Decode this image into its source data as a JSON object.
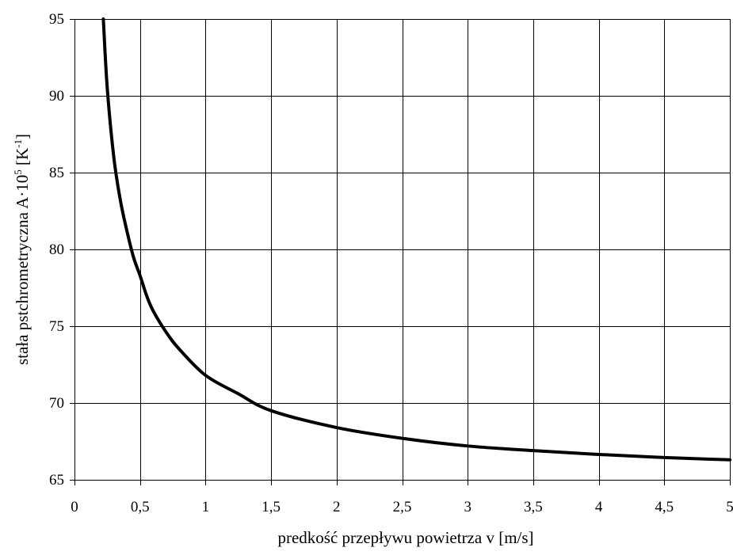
{
  "chart_data": {
    "type": "line",
    "title": "",
    "xlabel": "predkość przepływu powietrza v [m/s]",
    "ylabel": {
      "main": "stała pstchrometryczna  A·10",
      "exp": "5",
      "unit_open": " [K",
      "unit_exp": "-1",
      "unit_close": "]"
    },
    "xlim": [
      0,
      5
    ],
    "ylim": [
      65,
      95
    ],
    "x_ticks": [
      0,
      0.5,
      1,
      1.5,
      2,
      2.5,
      3,
      3.5,
      4,
      4.5,
      5
    ],
    "x_tick_labels": [
      "0",
      "0,5",
      "1",
      "1,5",
      "2",
      "2,5",
      "3",
      "3,5",
      "4",
      "4,5",
      "5"
    ],
    "y_ticks": [
      65,
      70,
      75,
      80,
      85,
      90,
      95
    ],
    "y_tick_labels": [
      "65",
      "70",
      "75",
      "80",
      "85",
      "90",
      "95"
    ],
    "grid": true,
    "legend": "none",
    "series": [
      {
        "x": [
          0.22,
          0.25,
          0.3,
          0.35,
          0.4,
          0.45,
          0.5,
          0.55,
          0.6,
          0.7,
          0.8,
          1.0,
          1.25,
          1.5,
          2.0,
          2.5,
          3.0,
          3.5,
          4.0,
          4.5,
          5.0
        ],
        "y": [
          95.0,
          90.5,
          86.0,
          83.2,
          81.2,
          79.5,
          78.3,
          77.0,
          76.0,
          74.6,
          73.5,
          71.8,
          70.6,
          69.5,
          68.4,
          67.7,
          67.2,
          66.9,
          66.65,
          66.45,
          66.3
        ],
        "color": "#000000"
      }
    ]
  }
}
